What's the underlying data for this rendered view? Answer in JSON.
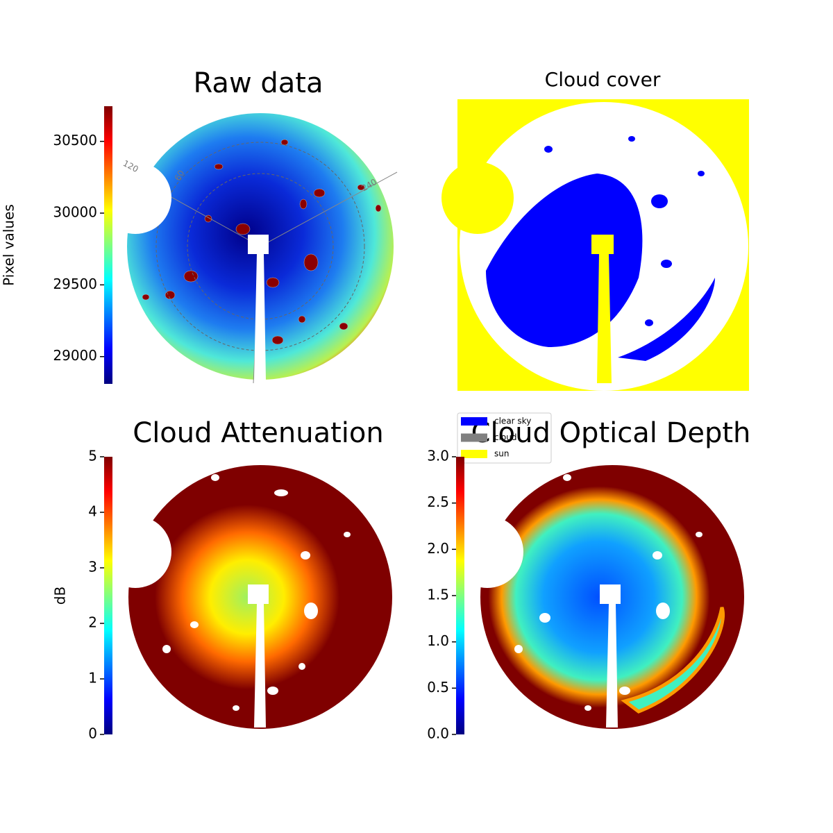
{
  "chart_data": [
    {
      "type": "image",
      "title": "Raw data",
      "colorbar_label": "Pixel values",
      "colormap": "jet",
      "clim": [
        28810,
        30745
      ],
      "cticks": [
        29000,
        29500,
        30000,
        30500
      ],
      "polar_labels": [
        "120",
        "60",
        "240"
      ]
    },
    {
      "type": "image",
      "title": "Cloud cover",
      "categories": [
        "clear sky",
        "cloud",
        "sun"
      ],
      "colors": [
        "#0000ff",
        "#808080",
        "#ffff00"
      ]
    },
    {
      "type": "image",
      "title": "Cloud Attenuation",
      "colorbar_label": "dB",
      "colormap": "jet",
      "clim": [
        0,
        5
      ],
      "cticks": [
        0,
        1,
        2,
        3,
        4,
        5
      ]
    },
    {
      "type": "image",
      "title": "Cloud Optical Depth",
      "colormap": "jet",
      "clim": [
        0,
        3
      ],
      "cticks": [
        {
          "value": 0,
          "label": "0.0"
        },
        0.5,
        {
          "value": 1,
          "label": "1.0"
        },
        1.5,
        {
          "value": 2,
          "label": "2.0"
        },
        2.5,
        {
          "value": 3,
          "label": "3.0"
        }
      ]
    }
  ]
}
